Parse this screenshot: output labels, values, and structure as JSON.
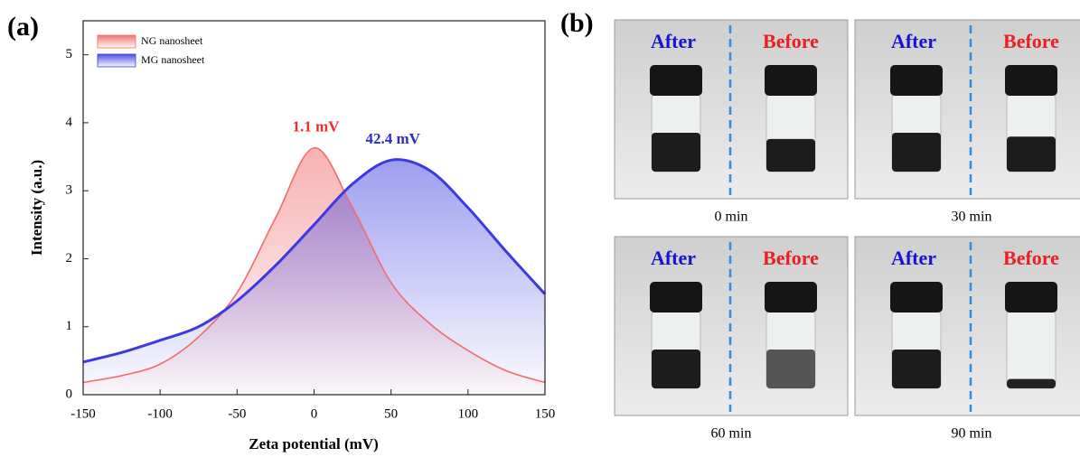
{
  "chart_data": {
    "type": "line",
    "panel_label": "(a)",
    "x_label": "Zeta potential (mV)",
    "y_label": "Intensity (a.u.)",
    "x": [
      -150,
      -125,
      -100,
      -75,
      -50,
      -25,
      0,
      25,
      50,
      75,
      100,
      125,
      150
    ],
    "series": [
      {
        "name": "NG nanosheet",
        "color": "#f26b6b",
        "values": [
          0.18,
          0.28,
          0.45,
          0.85,
          1.5,
          2.6,
          3.63,
          2.75,
          1.65,
          1.05,
          0.65,
          0.35,
          0.18
        ]
      },
      {
        "name": "MG nanosheet",
        "color": "#3a3ae0",
        "values": [
          0.48,
          0.62,
          0.8,
          1.0,
          1.38,
          1.9,
          2.5,
          3.1,
          3.45,
          3.3,
          2.75,
          2.1,
          1.48
        ]
      }
    ],
    "annotations": [
      {
        "text": "1.1 mV",
        "color": "#e8302e"
      },
      {
        "text": "42.4 mV",
        "color": "#2b2bd0"
      }
    ],
    "xlim": [
      -150,
      150
    ],
    "xticks": [
      -150,
      -100,
      -50,
      0,
      50,
      100,
      150
    ],
    "ylim": [
      0,
      5.5
    ],
    "yticks": [
      0,
      1,
      2,
      3,
      4,
      5
    ],
    "legend": "upper left"
  },
  "panel_b": {
    "label": "(b)",
    "photos": [
      {
        "left": "After",
        "right": "Before",
        "caption": "0 min"
      },
      {
        "left": "After",
        "right": "Before",
        "caption": "30 min"
      },
      {
        "left": "After",
        "right": "Before",
        "caption": "60 min"
      },
      {
        "left": "After",
        "right": "Before",
        "caption": "90 min"
      }
    ]
  }
}
